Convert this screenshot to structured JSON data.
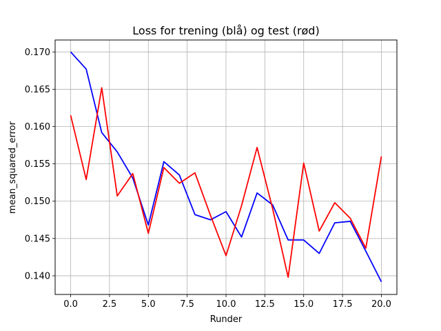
{
  "chart_data": {
    "type": "line",
    "title": "Loss for trening (blå) og test (rød)",
    "xlabel": "Runder",
    "ylabel": "mean_squared_error",
    "xlim": [
      -1,
      21
    ],
    "ylim": [
      0.1375,
      0.1716
    ],
    "xticks": [
      0.0,
      2.5,
      5.0,
      7.5,
      10.0,
      12.5,
      15.0,
      17.5,
      20.0
    ],
    "xtick_labels": [
      "0.0",
      "2.5",
      "5.0",
      "7.5",
      "10.0",
      "12.5",
      "15.0",
      "17.5",
      "20.0"
    ],
    "yticks": [
      0.14,
      0.145,
      0.15,
      0.155,
      0.16,
      0.165,
      0.17
    ],
    "ytick_labels": [
      "0.140",
      "0.145",
      "0.150",
      "0.155",
      "0.160",
      "0.165",
      "0.170"
    ],
    "grid": true,
    "legend": "none",
    "x": [
      0,
      1,
      2,
      3,
      4,
      5,
      6,
      7,
      8,
      9,
      10,
      11,
      12,
      13,
      14,
      15,
      16,
      17,
      18,
      19,
      20
    ],
    "series": [
      {
        "color": "#0000ff",
        "values": [
          0.17,
          0.1677,
          0.1592,
          0.1566,
          0.1531,
          0.1468,
          0.1553,
          0.1535,
          0.1482,
          0.1475,
          0.1486,
          0.1452,
          0.1511,
          0.1495,
          0.1448,
          0.1448,
          0.143,
          0.1471,
          0.1473,
          0.1433,
          0.1392
        ]
      },
      {
        "color": "#ff0000",
        "values": [
          0.1615,
          0.1529,
          0.1652,
          0.1507,
          0.1537,
          0.1457,
          0.1545,
          0.1524,
          0.1538,
          0.1481,
          0.1427,
          0.1494,
          0.1572,
          0.149,
          0.1398,
          0.1551,
          0.146,
          0.1498,
          0.1477,
          0.1437,
          0.156
        ]
      }
    ]
  }
}
